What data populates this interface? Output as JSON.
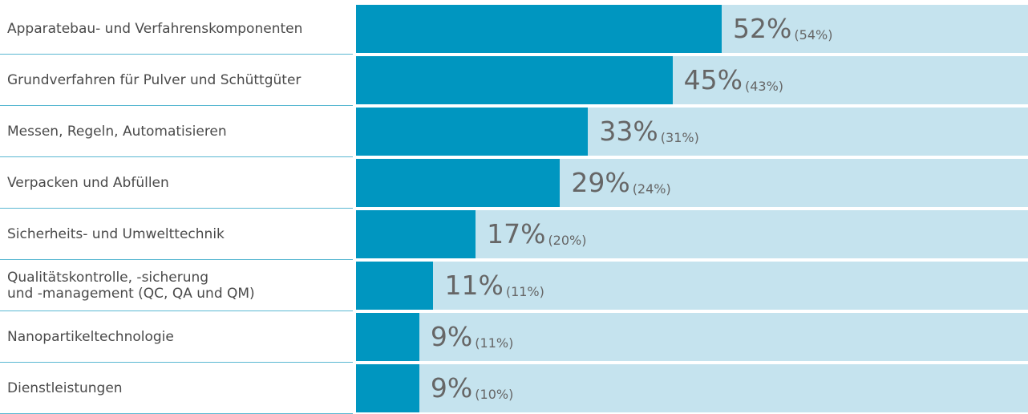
{
  "chart_data": {
    "type": "bar",
    "orientation": "horizontal",
    "categories": [
      "Apparatebau- und Verfahrenskomponenten",
      "Grundverfahren für Pulver und Schüttgüter",
      "Messen, Regeln, Automatisieren",
      "Verpacken und Abfüllen",
      "Sicherheits- und Umwelttechnik",
      "Qualitätskontrolle, -sicherung\nund -management (QC, QA und QM)",
      "Nanopartikeltechnologie",
      "Dienstleistungen"
    ],
    "values": [
      52,
      45,
      33,
      29,
      17,
      11,
      9,
      9
    ],
    "value_labels": [
      "52%",
      "45%",
      "33%",
      "29%",
      "17%",
      "11%",
      "9%",
      "9%"
    ],
    "prior_values": [
      54,
      43,
      31,
      24,
      20,
      11,
      11,
      10
    ],
    "prior_value_labels": [
      "(54%)",
      "(43%)",
      "(31%)",
      "(24%)",
      "(20%)",
      "(11%)",
      "(11%)",
      "(10%)"
    ],
    "color": "#0096c0",
    "background_color": "#c5e3ee",
    "separator_color": "#5ab8d2",
    "xlim": [
      0,
      100
    ]
  }
}
